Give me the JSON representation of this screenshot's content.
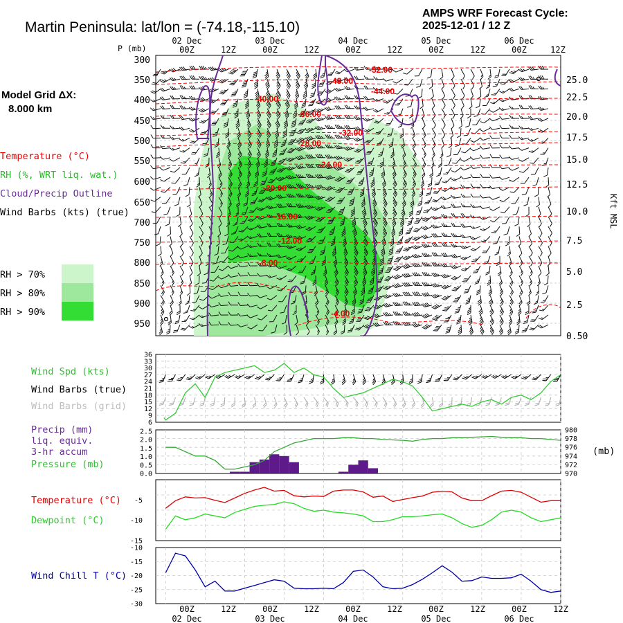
{
  "header": {
    "title": "Martin Peninsula:  lat/lon = (-74.18,-115.10)",
    "cycle_line1": "AMPS WRF Forecast Cycle:",
    "cycle_line2": "2025-12-01 / 12  Z"
  },
  "model_grid": {
    "label": "Model Grid ΔX:",
    "value": "8.000 km"
  },
  "time_axis": {
    "hours": [
      "00Z",
      "12Z",
      "00Z",
      "12Z",
      "00Z",
      "12Z",
      "00Z",
      "12Z",
      "00Z",
      "12Z"
    ],
    "dates": [
      "02 Dec",
      "03 Dec",
      "04 Dec",
      "05 Dec",
      "06 Dec"
    ]
  },
  "cross_section": {
    "pressure_unit": "P (mb)",
    "pressure_ticks": [
      "300",
      "350",
      "400",
      "450",
      "500",
      "550",
      "600",
      "650",
      "700",
      "750",
      "800",
      "850",
      "900",
      "950"
    ],
    "height_unit": "Kft MSL",
    "height_ticks": [
      "25.0",
      "22.5",
      "20.0",
      "17.5",
      "15.0",
      "12.5",
      "10.0",
      "7.5",
      "5.0",
      "2.5",
      "0.50"
    ],
    "legend": {
      "temperature": "Temperature (°C)",
      "rh": "RH (%, WRT liq. wat.)",
      "cloud": "Cloud/Precip Outline",
      "wind": "Wind Barbs (kts) (true)"
    },
    "rh_levels": [
      {
        "label": "RH > 70%",
        "color": "#ccf5cc"
      },
      {
        "label": "RH > 80%",
        "color": "#9ee89e"
      },
      {
        "label": "RH > 90%",
        "color": "#33dd33"
      }
    ],
    "temp_labels": [
      "-52.00",
      "-48.00",
      "-44.00",
      "-40.00",
      "-36.00",
      "-32.00",
      "-28.00",
      "-24.00",
      "-20.00",
      "-16.00",
      "-12.00",
      "-8.00",
      "-4.00"
    ],
    "colors": {
      "temperature": "#ff0000",
      "cloud": "#6a2b9a",
      "barb": "#000000"
    }
  },
  "chart_data": [
    {
      "type": "line",
      "name": "wind",
      "ylabel": "Wind Spd (kts)",
      "legend": [
        "Wind Spd (kts)",
        "Wind Barbs (true)",
        "Wind Barbs (grid)"
      ],
      "yticks": [
        "36",
        "33",
        "30",
        "27",
        "24",
        "21",
        "18",
        "15",
        "12",
        "9",
        "6"
      ],
      "ylim": [
        6,
        36
      ],
      "x": [
        -0.5,
        0,
        3,
        6,
        9,
        12,
        15,
        18,
        21,
        24,
        27,
        30,
        33,
        36,
        39,
        42,
        45,
        48,
        51,
        54,
        57,
        60,
        63,
        66,
        69,
        72,
        75,
        78,
        81,
        84,
        87,
        90,
        93,
        96,
        99,
        102,
        105,
        108,
        111,
        114,
        117,
        120
      ],
      "values": [
        8,
        7,
        10,
        19,
        23,
        17,
        26,
        28,
        29,
        30,
        31,
        28,
        29,
        32,
        28,
        30,
        27,
        26,
        21,
        17,
        18,
        19,
        21,
        23,
        25,
        24,
        22,
        17,
        11,
        12,
        13,
        14,
        13,
        15,
        16,
        14,
        17,
        18,
        16,
        19,
        24,
        27
      ],
      "color": "#33cc33"
    },
    {
      "type": "bar",
      "name": "precip",
      "ylabel": "Precip (mm)",
      "legend": [
        "Precip (mm)",
        "liq. equiv.",
        "3-hr accum",
        "Pressure (mb)"
      ],
      "yticks": [
        "2.5",
        "2.0",
        "1.5",
        "1.0",
        "0.5",
        "0.0"
      ],
      "ylim": [
        0,
        2.5
      ],
      "x": [
        21,
        24,
        27,
        30,
        33,
        36,
        39,
        54,
        57,
        60,
        63
      ],
      "values": [
        0.1,
        0.1,
        0.65,
        0.8,
        1.1,
        1.0,
        0.65,
        0.1,
        0.5,
        0.75,
        0.3
      ],
      "color": "#5e1a8a"
    },
    {
      "type": "line",
      "name": "pressure",
      "ylabel": "Pressure (mb)",
      "y2label": "(mb)",
      "y2ticks": [
        "980",
        "978",
        "976",
        "974",
        "972",
        "970"
      ],
      "ylim": [
        970,
        980
      ],
      "x": [
        0,
        3,
        6,
        9,
        12,
        15,
        18,
        21,
        24,
        27,
        30,
        33,
        36,
        39,
        42,
        45,
        48,
        51,
        54,
        57,
        60,
        63,
        66,
        69,
        72,
        75,
        78,
        81,
        84,
        87,
        90,
        93,
        96,
        99,
        102,
        105,
        108,
        111,
        114,
        117,
        120
      ],
      "values": [
        976,
        976,
        975,
        974,
        974,
        973,
        971,
        971,
        971.5,
        972,
        973,
        975,
        976,
        977,
        977.5,
        978,
        978,
        978,
        978.2,
        978.2,
        978,
        978,
        977.8,
        977.7,
        977.6,
        977.4,
        977.8,
        978,
        978,
        978.2,
        978.2,
        978.3,
        978.4,
        978.5,
        978.3,
        978.2,
        978.2,
        978,
        978,
        977.8,
        977.6
      ],
      "color": "#33aa33"
    },
    {
      "type": "line",
      "name": "temperature-dewpoint",
      "yticks": [
        "-5",
        "-10",
        "-15"
      ],
      "ylim": [
        -16,
        0
      ],
      "x": [
        0,
        3,
        6,
        9,
        12,
        15,
        18,
        21,
        24,
        27,
        30,
        33,
        36,
        39,
        42,
        45,
        48,
        51,
        54,
        57,
        60,
        63,
        66,
        69,
        72,
        75,
        78,
        81,
        84,
        87,
        90,
        93,
        96,
        99,
        102,
        105,
        108,
        111,
        114,
        117,
        120
      ],
      "series": [
        {
          "name": "Temperature (°C)",
          "color": "#dd0000",
          "values": [
            -7.5,
            -5.5,
            -4.5,
            -4.8,
            -4.7,
            -5.4,
            -6,
            -4.8,
            -3.6,
            -2.7,
            -2,
            -3,
            -2.8,
            -4.2,
            -4.5,
            -4.3,
            -4.4,
            -3,
            -2.7,
            -2.7,
            -3.2,
            -4.6,
            -4.3,
            -5.7,
            -5.2,
            -4.7,
            -4.3,
            -3.3,
            -3,
            -3.2,
            -4.8,
            -5.5,
            -5.5,
            -4.2,
            -3,
            -2.8,
            -3.3,
            -4.6,
            -5.9,
            -5.5,
            -5.5
          ]
        },
        {
          "name": "Dewpoint (°C)",
          "color": "#22dd22",
          "values": [
            -13,
            -9.5,
            -10.5,
            -10,
            -9,
            -9.5,
            -10,
            -8.6,
            -7.8,
            -7,
            -6.7,
            -6.5,
            -5.8,
            -6.3,
            -7.5,
            -8.3,
            -8,
            -8.5,
            -8.7,
            -9,
            -9.5,
            -11,
            -11,
            -10.5,
            -9.7,
            -9.7,
            -9.5,
            -9.2,
            -9,
            -10,
            -11.5,
            -12.5,
            -12,
            -10.5,
            -8.5,
            -8,
            -8.5,
            -10,
            -11,
            -10.5,
            -10
          ]
        }
      ]
    },
    {
      "type": "line",
      "name": "wind-chill",
      "ylabel": "Wind Chill T (°C)",
      "yticks": [
        "-10",
        "-15",
        "-20",
        "-25",
        "-30"
      ],
      "ylim": [
        -30,
        -10
      ],
      "x": [
        0,
        3,
        6,
        9,
        12,
        15,
        18,
        21,
        24,
        27,
        30,
        33,
        36,
        39,
        42,
        45,
        48,
        51,
        54,
        57,
        60,
        63,
        66,
        69,
        72,
        75,
        78,
        81,
        84,
        87,
        90,
        93,
        96,
        99,
        102,
        105,
        108,
        111,
        114,
        117,
        120
      ],
      "values": [
        -19,
        -12,
        -13,
        -18,
        -24,
        -22,
        -25.5,
        -25.5,
        -24.5,
        -23.5,
        -22.5,
        -21.5,
        -22,
        -24.5,
        -24.7,
        -24.7,
        -24.5,
        -24.7,
        -22.5,
        -18.5,
        -18,
        -20.5,
        -24,
        -24.7,
        -24.5,
        -23.2,
        -21.3,
        -19,
        -16.5,
        -18.8,
        -22,
        -21.8,
        -20.5,
        -21,
        -21,
        -20.8,
        -19.5,
        -22,
        -25,
        -26,
        -25.5
      ],
      "color": "#0000aa"
    }
  ]
}
